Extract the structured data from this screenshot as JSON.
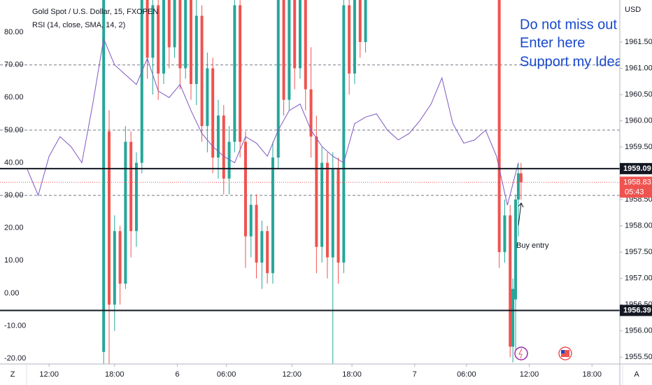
{
  "chart_data": [
    {
      "type": "candlestick",
      "title": "Gold Spot / U.S. Dollar, 15, FXOPEN",
      "unit": "USD",
      "up_color": "#26a69a",
      "down_color": "#ef5350",
      "x": [
        38,
        40,
        42,
        44,
        46,
        48,
        50,
        52,
        54,
        56,
        58,
        60,
        62,
        64,
        66,
        68,
        70,
        72,
        74,
        76,
        78,
        80,
        82,
        84,
        86,
        88,
        90,
        92,
        94,
        96,
        98,
        100,
        102,
        104,
        106,
        108,
        110,
        112,
        114,
        116,
        118,
        120,
        122,
        124,
        126,
        128,
        130,
        132,
        134,
        183,
        185,
        187,
        188,
        189,
        190,
        191
      ],
      "open": [
        1955.6,
        1959.8,
        1956.5,
        1957.9,
        1956.9,
        1959.6,
        1957.9,
        1959.2,
        1962.3,
        1961.2,
        1962.2,
        1960.9,
        1962.3,
        1961.4,
        1962.4,
        1961.0,
        1962.3,
        1960.7,
        1962.0,
        1959.9,
        1961.0,
        1959.3,
        1960.1,
        1958.9,
        1959.6,
        1962.2,
        1959.6,
        1957.8,
        1958.4,
        1957.3,
        1957.9,
        1957.1,
        1959.3,
        1962.3,
        1960.4,
        1962.4,
        1961.0,
        1962.3,
        1960.6,
        1959.7,
        1957.6,
        1959.2,
        1957.4,
        1959.1,
        1957.3,
        1962.2,
        1960.9,
        1962.4,
        1961.5,
        1962.6,
        1957.5,
        1958.2,
        1955.7,
        1956.6,
        1958.5,
        1959.0
      ],
      "high": [
        1962.6,
        1960.2,
        1958.2,
        1958.0,
        1959.9,
        1959.8,
        1959.4,
        1962.5,
        1962.6,
        1962.5,
        1962.4,
        1962.6,
        1962.5,
        1962.6,
        1962.5,
        1962.6,
        1962.4,
        1962.5,
        1962.2,
        1961.3,
        1961.2,
        1960.4,
        1960.3,
        1959.9,
        1962.4,
        1962.3,
        1959.8,
        1958.6,
        1958.6,
        1958.1,
        1958.0,
        1959.6,
        1962.5,
        1962.4,
        1962.6,
        1962.5,
        1962.6,
        1962.5,
        1961.4,
        1960.1,
        1959.5,
        1959.4,
        1959.4,
        1959.3,
        1962.4,
        1962.4,
        1962.6,
        1962.5,
        1962.6,
        1962.8,
        1958.5,
        1958.4,
        1957.0,
        1958.6,
        1959.2,
        1959.2
      ],
      "low": [
        1955.3,
        1955.3,
        1956.0,
        1956.5,
        1956.8,
        1957.4,
        1957.6,
        1959.0,
        1960.8,
        1960.5,
        1960.4,
        1960.7,
        1961.0,
        1961.2,
        1960.6,
        1960.8,
        1960.4,
        1960.3,
        1959.6,
        1959.4,
        1959.0,
        1958.9,
        1958.6,
        1958.6,
        1959.4,
        1959.3,
        1957.2,
        1957.4,
        1957.0,
        1956.8,
        1956.9,
        1956.9,
        1959.1,
        1960.1,
        1960.2,
        1960.6,
        1960.8,
        1960.2,
        1959.3,
        1957.1,
        1957.3,
        1957.0,
        1955.3,
        1956.9,
        1957.1,
        1960.5,
        1960.7,
        1961.2,
        1961.3,
        1957.2,
        1957.3,
        1955.5,
        1955.4,
        1955.6,
        1957.8,
        1958.5
      ],
      "close": [
        1962.4,
        1956.5,
        1957.9,
        1956.9,
        1959.6,
        1957.9,
        1959.2,
        1962.3,
        1961.2,
        1962.2,
        1960.9,
        1962.3,
        1961.4,
        1962.4,
        1961.0,
        1962.3,
        1960.7,
        1962.0,
        1959.9,
        1961.0,
        1959.3,
        1960.1,
        1958.9,
        1959.6,
        1962.2,
        1959.6,
        1957.8,
        1958.4,
        1957.3,
        1957.9,
        1957.1,
        1959.3,
        1962.3,
        1960.4,
        1962.4,
        1961.0,
        1962.3,
        1960.6,
        1959.7,
        1957.6,
        1959.2,
        1957.4,
        1959.1,
        1957.3,
        1962.2,
        1960.9,
        1962.4,
        1961.5,
        1962.5,
        1957.5,
        1958.2,
        1955.7,
        1956.8,
        1958.5,
        1959.0,
        1958.83
      ],
      "xlim": [
        0,
        227.2
      ],
      "xticks": [
        {
          "value": 18,
          "label": "12:00"
        },
        {
          "value": 42,
          "label": "18:00"
        },
        {
          "value": 65,
          "label": "6"
        },
        {
          "value": 83,
          "label": "06:00"
        },
        {
          "value": 107,
          "label": "12:00"
        },
        {
          "value": 129,
          "label": "18:00"
        },
        {
          "value": 152,
          "label": "7"
        },
        {
          "value": 171,
          "label": "06:00"
        },
        {
          "value": 194,
          "label": "12:00"
        },
        {
          "value": 217,
          "label": "18:00"
        }
      ],
      "ylim": [
        1955.37,
        1962.3
      ],
      "yticks": [
        {
          "value": 1961.5,
          "label": "1961.50"
        },
        {
          "value": 1961,
          "label": "1961.00"
        },
        {
          "value": 1960.5,
          "label": "1960.50"
        },
        {
          "value": 1960,
          "label": "1960.00"
        },
        {
          "value": 1959.5,
          "label": "1959.50"
        },
        {
          "value": 1958.5,
          "label": "1958.50"
        },
        {
          "value": 1958,
          "label": "1958.00"
        },
        {
          "value": 1957.5,
          "label": "1957.50"
        },
        {
          "value": 1957,
          "label": "1957.00"
        },
        {
          "value": 1956.5,
          "label": "1956.50"
        },
        {
          "value": 1956,
          "label": "1956.00"
        },
        {
          "value": 1955.5,
          "label": "1955.50"
        }
      ],
      "hlines": [
        {
          "value": 1959.09,
          "label": "1959.09"
        },
        {
          "value": 1956.39,
          "label": "1956.39"
        }
      ],
      "last_price": {
        "value": 1958.83,
        "label": "1958.83",
        "countdown": "05:43"
      },
      "annotation": "Buy entry",
      "text_box": [
        "Do not miss out on",
        "Enter here",
        "Support my Idea b"
      ]
    },
    {
      "type": "line",
      "title": "RSI (14, close, SMA, 14, 2)",
      "color": "#7e57c2",
      "x": [
        10,
        14,
        18,
        22,
        26,
        30,
        34,
        38,
        42,
        46,
        50,
        54,
        58,
        62,
        66,
        70,
        74,
        78,
        82,
        86,
        90,
        94,
        98,
        102,
        106,
        110,
        114,
        118,
        122,
        126,
        130,
        134,
        138,
        142,
        146,
        150,
        154,
        158,
        162,
        166,
        170,
        174,
        178,
        182,
        186,
        190
      ],
      "values": [
        38,
        30,
        42,
        48,
        45,
        40,
        58,
        78,
        70,
        67,
        64,
        72,
        62,
        60,
        64,
        56,
        49,
        45,
        42,
        40,
        48,
        46,
        42,
        50,
        56,
        58,
        50,
        45,
        42,
        40,
        52,
        54,
        55,
        50,
        47,
        49,
        53,
        58,
        66,
        52,
        46,
        47,
        50,
        42,
        27,
        40
      ],
      "ylim": [
        -21.7,
        89.9
      ],
      "yticks": [
        {
          "value": 80,
          "label": "80.00"
        },
        {
          "value": 70,
          "label": "70.00"
        },
        {
          "value": 60,
          "label": "60.00"
        },
        {
          "value": 50,
          "label": "50.00"
        },
        {
          "value": 40,
          "label": "40.00"
        },
        {
          "value": 30,
          "label": "30.00"
        },
        {
          "value": 20,
          "label": "20.00"
        },
        {
          "value": 10,
          "label": "10.00"
        },
        {
          "value": 0,
          "label": "0.00"
        },
        {
          "value": -10,
          "label": "-10.00"
        },
        {
          "value": -20,
          "label": "-20.00"
        }
      ],
      "levels": [
        70,
        50,
        30
      ]
    }
  ],
  "ui": {
    "left_button": "Z",
    "right_button": "A"
  }
}
